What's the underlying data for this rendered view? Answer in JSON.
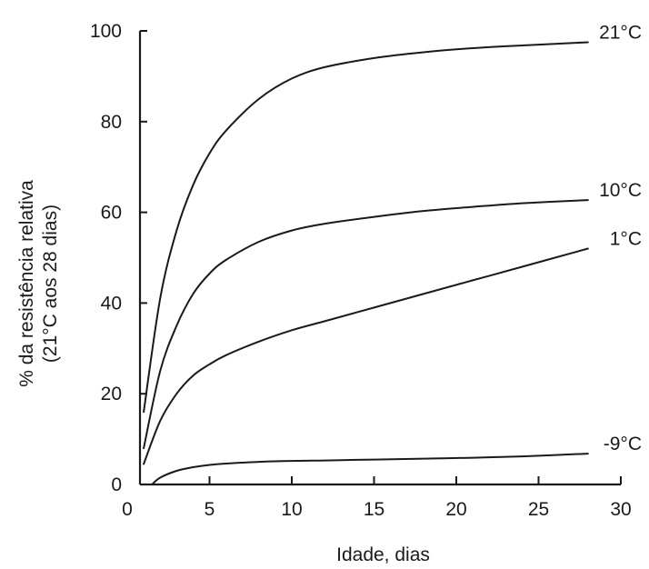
{
  "chart_data": {
    "type": "line",
    "title": "",
    "xlabel": "Idade, dias",
    "ylabel_line1": "% da resistência relativa",
    "ylabel_line2": "(21°C aos 28 dias)",
    "xlim": [
      0,
      30
    ],
    "ylim": [
      0,
      100
    ],
    "xticks": [
      "0",
      "5",
      "10",
      "15",
      "20",
      "25",
      "30"
    ],
    "yticks": [
      "0",
      "20",
      "40",
      "60",
      "80",
      "100"
    ],
    "grid": false,
    "legend": "none",
    "series": [
      {
        "name": "21°C",
        "x": [
          1,
          2,
          3,
          4,
          5,
          6,
          8,
          10,
          12,
          15,
          18,
          21,
          24,
          28
        ],
        "y": [
          16,
          41,
          56,
          66,
          73,
          78,
          85,
          89.5,
          92,
          94,
          95.3,
          96.2,
          96.8,
          97.5
        ]
      },
      {
        "name": "10°C",
        "x": [
          1,
          2,
          3,
          4,
          5,
          6,
          8,
          10,
          12,
          15,
          18,
          21,
          24,
          28
        ],
        "y": [
          8,
          25,
          35,
          42,
          46.5,
          49.5,
          53.5,
          56,
          57.5,
          59,
          60.3,
          61.2,
          62,
          62.7
        ]
      },
      {
        "name": "1°C",
        "x": [
          1,
          2,
          3,
          4,
          5,
          6,
          8,
          10,
          12,
          15,
          18,
          21,
          24,
          28
        ],
        "y": [
          4.5,
          14,
          20,
          24,
          26.5,
          28.5,
          31.5,
          34,
          36,
          39,
          42,
          45,
          48,
          52
        ]
      },
      {
        "name": "-9°C",
        "x": [
          1.5,
          2,
          3,
          4,
          5,
          6,
          8,
          10,
          12,
          15,
          18,
          21,
          24,
          28
        ],
        "y": [
          0,
          1.5,
          3,
          3.8,
          4.3,
          4.6,
          5,
          5.2,
          5.3,
          5.5,
          5.7,
          5.9,
          6.2,
          6.8
        ]
      }
    ]
  }
}
